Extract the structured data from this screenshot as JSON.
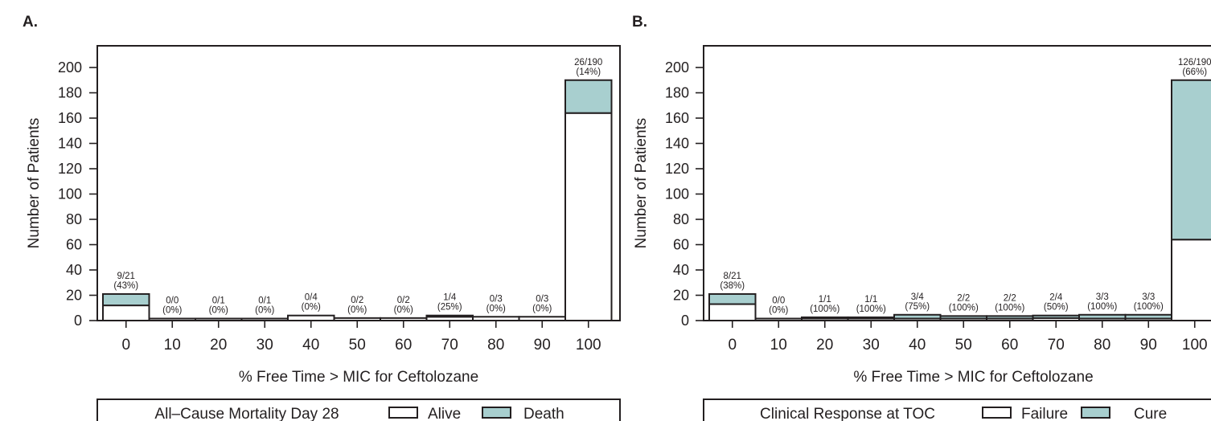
{
  "colors": {
    "fill_a": "#ffffff",
    "fill_b": "#a8cfcf",
    "ink": "#231f20"
  },
  "chart_data": [
    {
      "type": "bar",
      "panel_label": "A.",
      "stacked": true,
      "categories": [
        "0",
        "10",
        "20",
        "30",
        "40",
        "50",
        "60",
        "70",
        "80",
        "90",
        "100"
      ],
      "series": [
        {
          "name": "Alive",
          "values": [
            12,
            0,
            1,
            1,
            4,
            2,
            2,
            3,
            3,
            3,
            164
          ]
        },
        {
          "name": "Death",
          "values": [
            9,
            0,
            0,
            0,
            0,
            0,
            0,
            1,
            0,
            0,
            26
          ]
        }
      ],
      "bar_labels": [
        [
          "9/21",
          "(43%)"
        ],
        [
          "0/0",
          "(0%)"
        ],
        [
          "0/1",
          "(0%)"
        ],
        [
          "0/1",
          "(0%)"
        ],
        [
          "0/4",
          "(0%)"
        ],
        [
          "0/2",
          "(0%)"
        ],
        [
          "0/2",
          "(0%)"
        ],
        [
          "1/4",
          "(25%)"
        ],
        [
          "0/3",
          "(0%)"
        ],
        [
          "0/3",
          "(0%)"
        ],
        [
          "26/190",
          "(14%)"
        ]
      ],
      "xlabel": "% Free Time > MIC for Ceftolozane",
      "ylabel": "Number of Patients",
      "yticks": [
        0,
        20,
        40,
        60,
        80,
        100,
        120,
        140,
        160,
        180,
        200
      ],
      "ylim": [
        0,
        215
      ],
      "legend": {
        "title": "All–Cause Mortality Day 28",
        "items": [
          "Alive",
          "Death"
        ],
        "position": "bottom"
      }
    },
    {
      "type": "bar",
      "panel_label": "B.",
      "stacked": true,
      "categories": [
        "0",
        "10",
        "20",
        "30",
        "40",
        "50",
        "60",
        "70",
        "80",
        "90",
        "100"
      ],
      "series": [
        {
          "name": "Failure",
          "values": [
            13,
            0,
            0,
            0,
            1,
            0,
            0,
            2,
            0,
            0,
            64
          ]
        },
        {
          "name": "Cure",
          "values": [
            8,
            0,
            1,
            1,
            3,
            2,
            2,
            2,
            3,
            3,
            126
          ]
        }
      ],
      "bar_labels": [
        [
          "8/21",
          "(38%)"
        ],
        [
          "0/0",
          "(0%)"
        ],
        [
          "1/1",
          "(100%)"
        ],
        [
          "1/1",
          "(100%)"
        ],
        [
          "3/4",
          "(75%)"
        ],
        [
          "2/2",
          "(100%)"
        ],
        [
          "2/2",
          "(100%)"
        ],
        [
          "2/4",
          "(50%)"
        ],
        [
          "3/3",
          "(100%)"
        ],
        [
          "3/3",
          "(100%)"
        ],
        [
          "126/190",
          "(66%)"
        ]
      ],
      "xlabel": "% Free Time > MIC for Ceftolozane",
      "ylabel": "Number of Patients",
      "yticks": [
        0,
        20,
        40,
        60,
        80,
        100,
        120,
        140,
        160,
        180,
        200
      ],
      "ylim": [
        0,
        215
      ],
      "legend": {
        "title": "Clinical Response at TOC",
        "items": [
          "Failure",
          "Cure"
        ],
        "position": "bottom"
      }
    }
  ]
}
